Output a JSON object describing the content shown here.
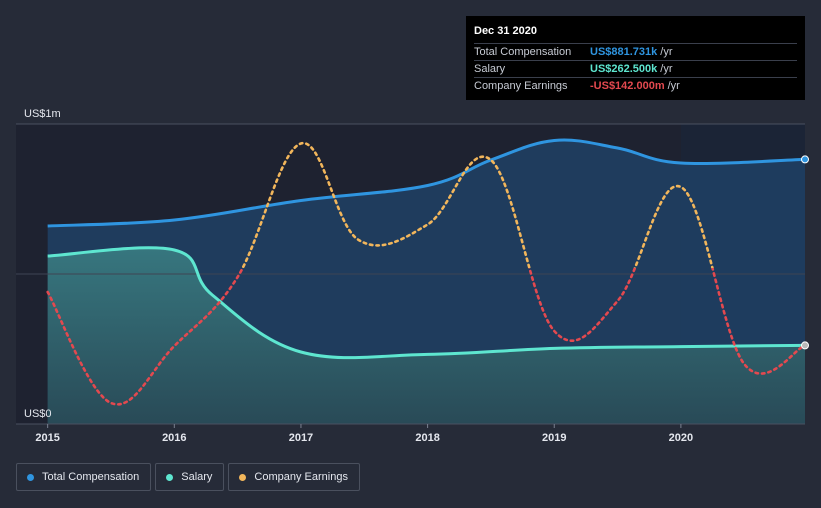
{
  "chart_data": {
    "type": "line",
    "title": "",
    "xlabel": "",
    "ylabel": "",
    "ylim": [
      0,
      1000
    ],
    "y_unit": "US$k",
    "y_tick_labels": [
      {
        "value": 1000,
        "label": "US$1m"
      },
      {
        "value": 0,
        "label": "US$0"
      }
    ],
    "x_ticks": [
      {
        "value": 2015.0,
        "label": "2015"
      },
      {
        "value": 2016.0,
        "label": "2016"
      },
      {
        "value": 2017.0,
        "label": "2017"
      },
      {
        "value": 2018.0,
        "label": "2018"
      },
      {
        "value": 2019.0,
        "label": "2019"
      },
      {
        "value": 2020.0,
        "label": "2020"
      }
    ],
    "xlim": [
      2014.75,
      2020.98
    ],
    "highlight_from": 2020.0,
    "series": [
      {
        "name": "Total Compensation",
        "color": "#2f95e0",
        "style": "solid-area",
        "points": [
          [
            2015.0,
            660
          ],
          [
            2016.0,
            680
          ],
          [
            2017.0,
            745
          ],
          [
            2018.0,
            795
          ],
          [
            2018.5,
            880
          ],
          [
            2019.0,
            945
          ],
          [
            2019.5,
            920
          ],
          [
            2020.0,
            870
          ],
          [
            2020.98,
            882
          ]
        ]
      },
      {
        "name": "Salary",
        "color": "#5ee6d0",
        "style": "solid-area",
        "points": [
          [
            2015.0,
            560
          ],
          [
            2016.0,
            580
          ],
          [
            2016.3,
            430
          ],
          [
            2017.0,
            240
          ],
          [
            2018.0,
            232
          ],
          [
            2019.0,
            252
          ],
          [
            2020.0,
            258
          ],
          [
            2020.98,
            262
          ]
        ]
      },
      {
        "name": "Company Earnings",
        "color": "#f2b65b",
        "negative_color": "#e3494f",
        "style": "dotted",
        "points": [
          [
            2015.0,
            440
          ],
          [
            2015.5,
            70
          ],
          [
            2016.0,
            260
          ],
          [
            2016.5,
            490
          ],
          [
            2017.0,
            935
          ],
          [
            2017.45,
            615
          ],
          [
            2018.0,
            665
          ],
          [
            2018.5,
            880
          ],
          [
            2019.0,
            310
          ],
          [
            2019.5,
            410
          ],
          [
            2020.0,
            790
          ],
          [
            2020.5,
            200
          ],
          [
            2020.98,
            262
          ]
        ]
      }
    ],
    "legend": [
      "Total Compensation",
      "Salary",
      "Company Earnings"
    ],
    "legend_position": "bottom-left"
  },
  "tooltip": {
    "title": "Dec 31 2020",
    "rows": [
      {
        "label": "Total Compensation",
        "value": "US$881.731k",
        "unit": "/yr",
        "color": "#2f95e0"
      },
      {
        "label": "Salary",
        "value": "US$262.500k",
        "unit": "/yr",
        "color": "#5ee6d0"
      },
      {
        "label": "Company Earnings",
        "value": "-US$142.000m",
        "unit": "/yr",
        "color": "#e3494f"
      }
    ]
  },
  "legend_items": [
    {
      "label": "Total Compensation",
      "color": "#2f95e0"
    },
    {
      "label": "Salary",
      "color": "#5ee6d0"
    },
    {
      "label": "Company Earnings",
      "color": "#f2b65b"
    }
  ]
}
